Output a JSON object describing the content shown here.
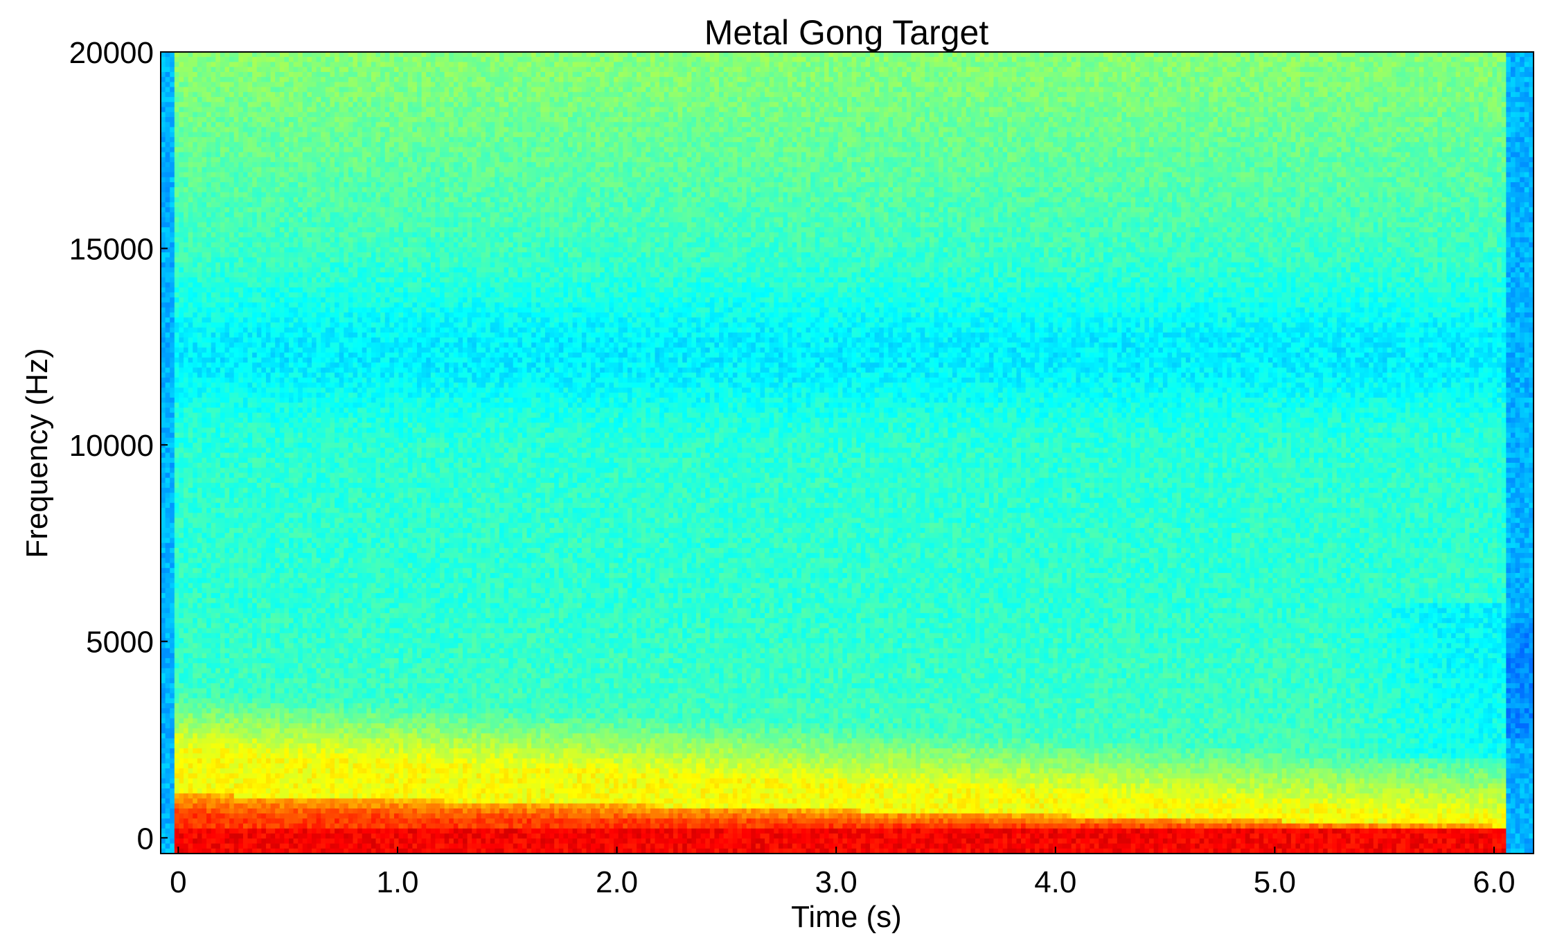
{
  "chart_data": {
    "type": "heatmap",
    "title": "Metal Gong Target",
    "xlabel": "Time (s)",
    "ylabel": "Frequency (Hz)",
    "x_ticks": [
      {
        "value": 0,
        "label": "0"
      },
      {
        "value": 1.0,
        "label": "1.0"
      },
      {
        "value": 2.0,
        "label": "2.0"
      },
      {
        "value": 3.0,
        "label": "3.0"
      },
      {
        "value": 4.0,
        "label": "4.0"
      },
      {
        "value": 5.0,
        "label": "5.0"
      },
      {
        "value": 6.0,
        "label": "6.0"
      }
    ],
    "y_ticks": [
      {
        "value": 0,
        "label": "0"
      },
      {
        "value": 5000,
        "label": "5000"
      },
      {
        "value": 10000,
        "label": "10000"
      },
      {
        "value": 15000,
        "label": "15000"
      },
      {
        "value": 20000,
        "label": "20000"
      }
    ],
    "xlim": [
      -0.08,
      6.18
    ],
    "ylim": [
      -400,
      20000
    ],
    "colormap": "jet",
    "colormap_stops": [
      "#00007f",
      "#0000ff",
      "#007fff",
      "#00ffff",
      "#7fff7f",
      "#ffff00",
      "#ff7f00",
      "#ff0000",
      "#7f0000"
    ],
    "grid": false,
    "legend": "none",
    "features": [
      {
        "description": "strong energy band",
        "time_start": 0.0,
        "time_end": 6.05,
        "freq_low": 0,
        "freq_high": 300,
        "level": "dark red"
      },
      {
        "description": "red/orange band decaying",
        "time_start": 0.0,
        "time_end": 6.0,
        "freq_low": 0,
        "freq_high_at_start": 1100,
        "freq_high_at_end": 300,
        "level": "red"
      },
      {
        "description": "yellow band decaying",
        "time_start": 0.0,
        "time_end": 5.9,
        "freq_low": 0,
        "freq_high_at_start": 2200,
        "freq_high_at_end": 500,
        "level": "yellow"
      },
      {
        "description": "low-energy blue band",
        "time_start": -0.08,
        "time_end": 6.18,
        "freq_center": 12300,
        "level": "blue"
      },
      {
        "description": "silence after sound ends",
        "time_start": 6.05,
        "time_end": 6.18,
        "freq_low": 0,
        "freq_high": 20000,
        "level": "blue"
      },
      {
        "description": "silence before onset",
        "time_start": -0.08,
        "time_end": -0.02,
        "freq_low": 0,
        "freq_high": 20000,
        "level": "blue"
      }
    ]
  }
}
